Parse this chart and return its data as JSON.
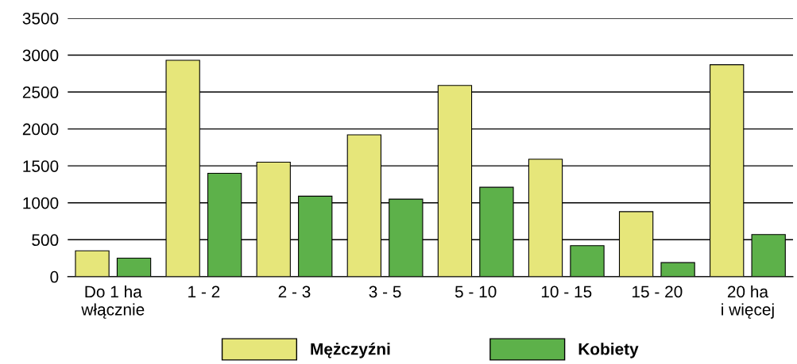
{
  "chart_data": {
    "type": "bar",
    "categories": [
      "Do 1 ha\nwłącznie",
      "1 - 2",
      "2 - 3",
      "3 - 5",
      "5 - 10",
      "10 - 15",
      "15 - 20",
      "20 ha\ni więcej"
    ],
    "series": [
      {
        "name": "Mężczyźni",
        "color": "#e6e67a",
        "values": [
          350,
          2930,
          1550,
          1920,
          2590,
          1590,
          880,
          2870
        ]
      },
      {
        "name": "Kobiety",
        "color": "#5db14a",
        "values": [
          250,
          1400,
          1090,
          1050,
          1210,
          420,
          190,
          570
        ]
      }
    ],
    "ylim": [
      0,
      3500
    ],
    "yticks": [
      0,
      500,
      1000,
      1500,
      2000,
      2500,
      3000,
      3500
    ],
    "grid": "y",
    "legend": "bottom"
  }
}
